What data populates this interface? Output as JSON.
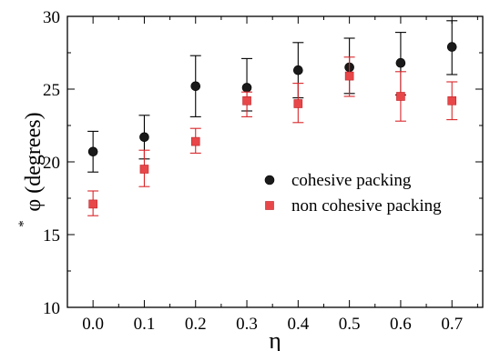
{
  "chart_data": {
    "type": "scatter",
    "xlabel": "η",
    "ylabel": "φ (degrees)",
    "ylabel_superscript": "*",
    "xlim": [
      -0.05,
      0.76
    ],
    "ylim": [
      10,
      30
    ],
    "x_ticks": [
      0.0,
      0.1,
      0.2,
      0.3,
      0.4,
      0.5,
      0.6,
      0.7
    ],
    "x_tick_labels": [
      "0.0",
      "0.1",
      "0.2",
      "0.3",
      "0.4",
      "0.5",
      "0.6",
      "0.7"
    ],
    "y_ticks": [
      10,
      15,
      20,
      25,
      30
    ],
    "y_tick_labels": [
      "10",
      "15",
      "20",
      "25",
      "30"
    ],
    "grid": false,
    "legend_position": "center-right",
    "series": [
      {
        "name": "cohesive packing",
        "marker": "circle",
        "color": "#1a1a1a",
        "error_color": "#000000",
        "x": [
          0.0,
          0.1,
          0.2,
          0.3,
          0.4,
          0.5,
          0.6,
          0.7
        ],
        "y": [
          20.7,
          21.7,
          25.2,
          25.1,
          26.3,
          26.5,
          26.8,
          27.9
        ],
        "y_err_low": [
          19.3,
          20.2,
          23.1,
          23.5,
          24.4,
          24.7,
          24.6,
          26.0
        ],
        "y_err_high": [
          22.1,
          23.2,
          27.3,
          27.1,
          28.2,
          28.5,
          28.9,
          29.7
        ]
      },
      {
        "name": "non cohesive packing",
        "marker": "square",
        "color": "#e8474a",
        "error_color": "#d9262a",
        "x": [
          0.0,
          0.1,
          0.2,
          0.3,
          0.4,
          0.5,
          0.6,
          0.7
        ],
        "y": [
          17.1,
          19.5,
          21.4,
          24.2,
          24.0,
          25.9,
          24.5,
          24.2
        ],
        "y_err_low": [
          16.3,
          18.3,
          20.6,
          23.1,
          22.7,
          24.5,
          22.8,
          22.9
        ],
        "y_err_high": [
          18.0,
          20.8,
          22.3,
          24.8,
          25.4,
          27.2,
          26.2,
          25.5
        ]
      }
    ]
  }
}
